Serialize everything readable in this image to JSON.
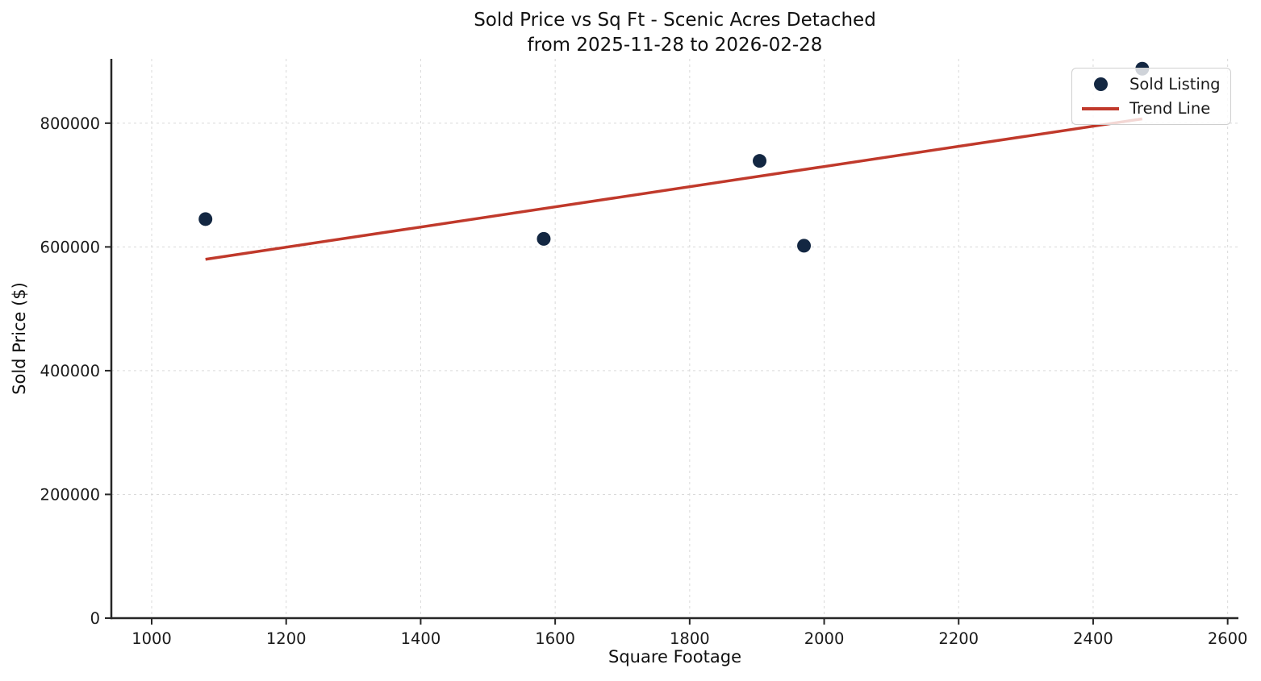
{
  "figure": {
    "title_line1": "Sold Price vs Sq Ft - Scenic Acres Detached",
    "title_line2": "from 2025-11-28 to 2026-02-28"
  },
  "chart_data": {
    "type": "scatter",
    "title": "Sold Price vs Sq Ft - Scenic Acres Detached\nfrom 2025-11-28 to 2026-02-28",
    "xlabel": "Square Footage",
    "ylabel": "Sold Price ($)",
    "xlim": [
      940,
      2616
    ],
    "ylim": [
      0,
      904000
    ],
    "x_ticks": [
      1000,
      1200,
      1400,
      1600,
      1800,
      2000,
      2200,
      2400,
      2600
    ],
    "y_ticks": [
      0,
      200000,
      400000,
      600000,
      800000
    ],
    "grid": true,
    "legend_position": "upper right",
    "series": [
      {
        "name": "Sold Listing",
        "kind": "scatter",
        "color": "#132742",
        "points": [
          [
            1080,
            645000
          ],
          [
            1583,
            613000
          ],
          [
            1904,
            739000
          ],
          [
            1970,
            602000
          ],
          [
            2473,
            888000
          ]
        ]
      },
      {
        "name": "Trend Line",
        "kind": "line",
        "color": "#c0392b",
        "points": [
          [
            1080,
            580000
          ],
          [
            2473,
            807000
          ]
        ]
      }
    ]
  },
  "colors": {
    "marker": "#132742",
    "trend": "#c0392b",
    "grid": "#d9d9d9",
    "axis": "#262626",
    "text": "#1a1a1a",
    "legend_border": "#cfcfcf"
  }
}
